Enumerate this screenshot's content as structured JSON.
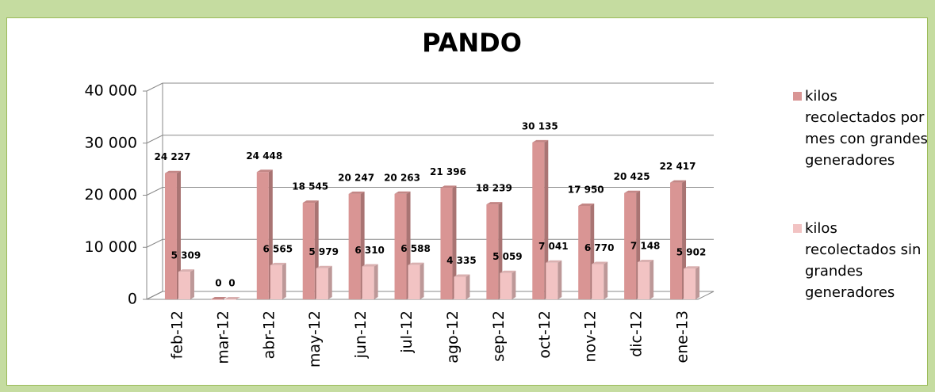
{
  "chart_data": {
    "type": "bar3d",
    "title": "PANDO",
    "categories": [
      "feb-12",
      "mar-12",
      "abr-12",
      "may-12",
      "jun-12",
      "jul-12",
      "ago-12",
      "sep-12",
      "oct-12",
      "nov-12",
      "dic-12",
      "ene-13"
    ],
    "series": [
      {
        "name": "kilos recolectados por mes con grandes generadores",
        "color": "#d99594",
        "values": [
          24227,
          0,
          24448,
          18545,
          20247,
          20263,
          21396,
          18239,
          30135,
          17950,
          20425,
          22417
        ],
        "value_labels": [
          "24 227",
          "0",
          "24 448",
          "18 545",
          "20 247",
          "20 263",
          "21 396",
          "18 239",
          "30 135",
          "17 950",
          "20 425",
          "22 417"
        ]
      },
      {
        "name": "kilos recolectados sin grandes generadores",
        "color": "#f2c3c3",
        "values": [
          5309,
          0,
          6565,
          5979,
          6310,
          6588,
          4335,
          5059,
          7041,
          6770,
          7148,
          5902
        ],
        "value_labels": [
          "5 309",
          "0",
          "6 565",
          "5 979",
          "6 310",
          "6 588",
          "4 335",
          "5 059",
          "7 041",
          "6 770",
          "7 148",
          "5 902"
        ]
      }
    ],
    "ylim": [
      0,
      40000
    ],
    "yticks": [
      0,
      {
        "value": 10000,
        "label": "10 000"
      },
      {
        "value": 20000,
        "label": "20 000"
      },
      {
        "value": 30000,
        "label": "30 000"
      },
      {
        "value": 40000,
        "label": "40 000"
      }
    ],
    "grid": true,
    "legend": "right"
  }
}
